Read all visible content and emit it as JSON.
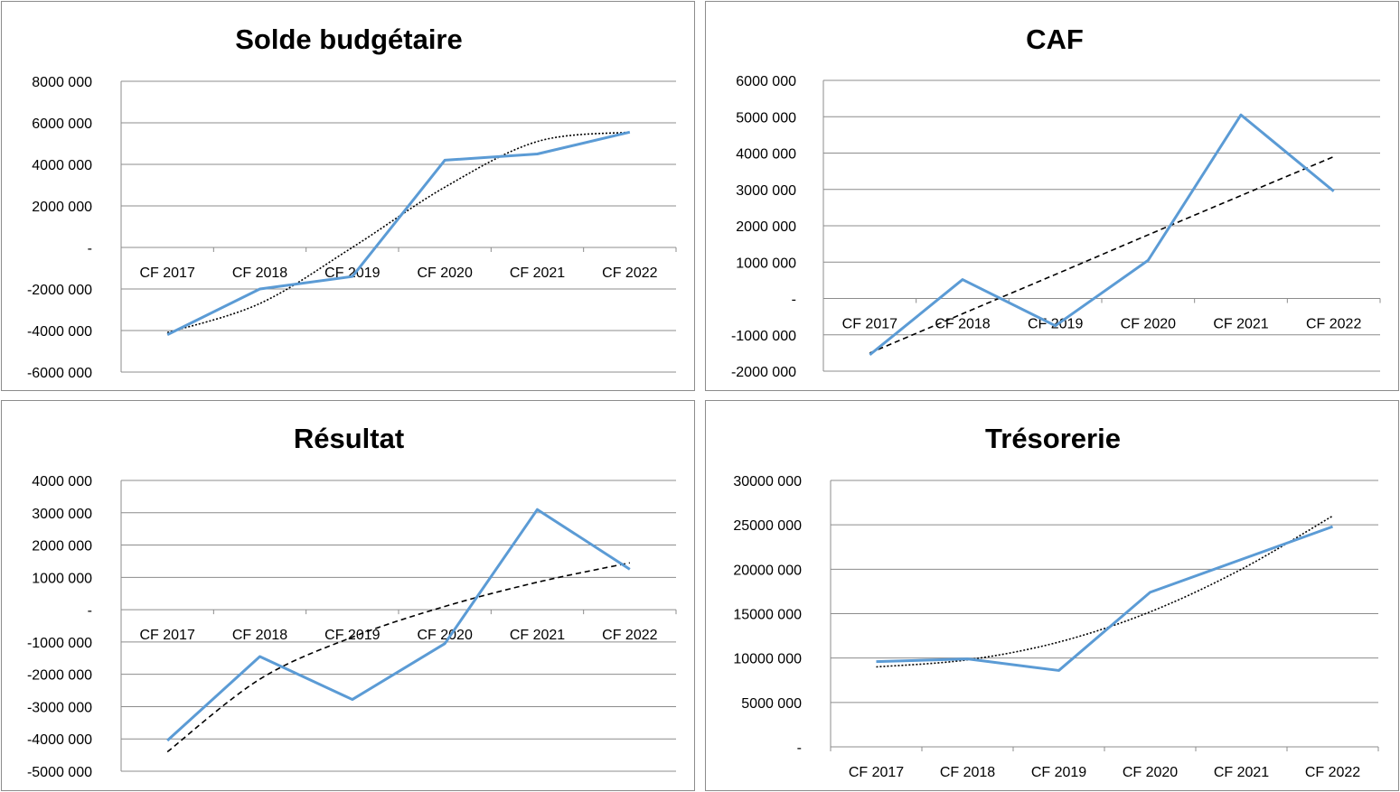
{
  "chart_data": [
    {
      "id": "solde",
      "type": "line",
      "title": "Solde budgétaire",
      "categories": [
        "CF 2017",
        "CF 2018",
        "CF 2019",
        "CF 2020",
        "CF 2021",
        "CF 2022"
      ],
      "series": [
        {
          "values": [
            -4200000,
            -2000000,
            -1400000,
            4200000,
            4500000,
            5550000
          ]
        }
      ],
      "trendline": {
        "kind": "polynomial",
        "style": "dotted",
        "values": [
          -4100000,
          -2700000,
          0,
          2900000,
          5100000,
          5550000
        ]
      },
      "ylim": [
        -6000000,
        8000000
      ],
      "yticks": [
        8000000,
        6000000,
        4000000,
        2000000,
        0,
        -2000000,
        -4000000,
        -6000000
      ],
      "ytick_labels": [
        "8000 000",
        "6000 000",
        "4000 000",
        "2000 000",
        "-",
        "-2000 000",
        "-4000 000",
        "-6000 000"
      ],
      "grid": true,
      "legend": "none"
    },
    {
      "id": "caf",
      "type": "line",
      "title": "CAF",
      "categories": [
        "CF 2017",
        "CF 2018",
        "CF 2019",
        "CF 2020",
        "CF 2021",
        "CF 2022"
      ],
      "series": [
        {
          "values": [
            -1550000,
            520000,
            -750000,
            1050000,
            5050000,
            2950000
          ]
        }
      ],
      "trendline": {
        "kind": "linear",
        "style": "dashed",
        "values": [
          -1500000,
          -420000,
          660000,
          1750000,
          2830000,
          3900000
        ]
      },
      "ylim": [
        -2000000,
        6000000
      ],
      "yticks": [
        6000000,
        5000000,
        4000000,
        3000000,
        2000000,
        1000000,
        0,
        -1000000,
        -2000000
      ],
      "ytick_labels": [
        "6000 000",
        "5000 000",
        "4000 000",
        "3000 000",
        "2000 000",
        "1000 000",
        "-",
        "-1000 000",
        "-2000 000"
      ],
      "grid": true,
      "legend": "none"
    },
    {
      "id": "resultat",
      "type": "line",
      "title": "Résultat",
      "categories": [
        "CF 2017",
        "CF 2018",
        "CF 2019",
        "CF 2020",
        "CF 2021",
        "CF 2022"
      ],
      "series": [
        {
          "values": [
            -4050000,
            -1450000,
            -2780000,
            -1050000,
            3100000,
            1250000
          ]
        }
      ],
      "trendline": {
        "kind": "logarithmic",
        "style": "dashed",
        "values": [
          -4400000,
          -2150000,
          -850000,
          100000,
          850000,
          1450000
        ]
      },
      "ylim": [
        -5000000,
        4000000
      ],
      "yticks": [
        4000000,
        3000000,
        2000000,
        1000000,
        0,
        -1000000,
        -2000000,
        -3000000,
        -4000000,
        -5000000
      ],
      "ytick_labels": [
        "4000 000",
        "3000 000",
        "2000 000",
        "1000 000",
        "-",
        "-1000 000",
        "-2000 000",
        "-3000 000",
        "-4000 000",
        "-5000 000"
      ],
      "grid": true,
      "legend": "none"
    },
    {
      "id": "tresorerie",
      "type": "line",
      "title": "Trésorerie",
      "categories": [
        "CF 2017",
        "CF 2018",
        "CF 2019",
        "CF 2020",
        "CF 2021",
        "CF 2022"
      ],
      "series": [
        {
          "values": [
            9600000,
            9900000,
            8600000,
            17400000,
            21100000,
            24800000
          ]
        }
      ],
      "trendline": {
        "kind": "polynomial",
        "style": "dotted",
        "values": [
          9000000,
          9800000,
          11800000,
          15200000,
          20000000,
          26000000
        ]
      },
      "ylim": [
        0,
        30000000
      ],
      "yticks": [
        30000000,
        25000000,
        20000000,
        15000000,
        10000000,
        5000000,
        0
      ],
      "ytick_labels": [
        "30000 000",
        "25000 000",
        "20000 000",
        "15000 000",
        "10000 000",
        "5000 000",
        "-"
      ],
      "grid": true,
      "legend": "none"
    }
  ]
}
